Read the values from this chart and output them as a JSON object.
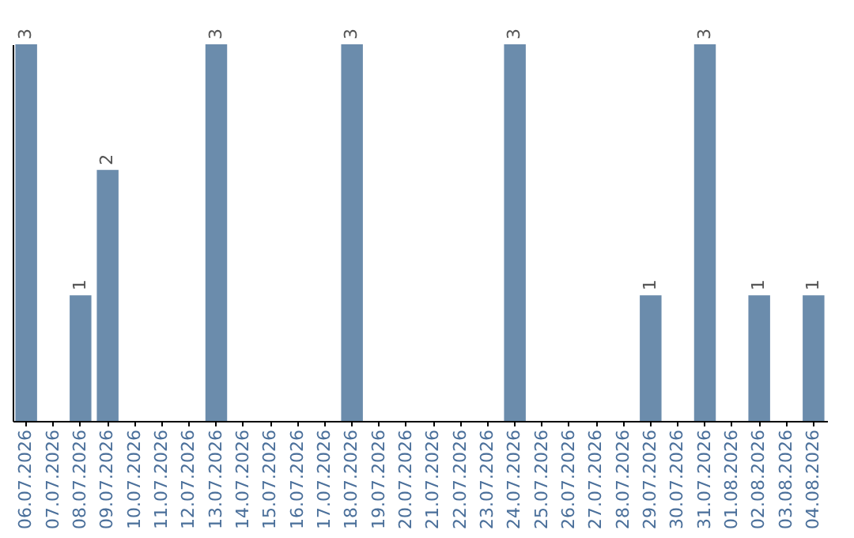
{
  "chart_data": {
    "type": "bar",
    "categories": [
      "06.07.2026",
      "07.07.2026",
      "08.07.2026",
      "09.07.2026",
      "10.07.2026",
      "11.07.2026",
      "12.07.2026",
      "13.07.2026",
      "14.07.2026",
      "15.07.2026",
      "16.07.2026",
      "17.07.2026",
      "18.07.2026",
      "19.07.2026",
      "20.07.2026",
      "21.07.2026",
      "22.07.2026",
      "23.07.2026",
      "24.07.2026",
      "25.07.2026",
      "26.07.2026",
      "27.07.2026",
      "28.07.2026",
      "29.07.2026",
      "30.07.2026",
      "31.07.2026",
      "01.08.2026",
      "02.08.2026",
      "03.08.2026",
      "04.08.2026"
    ],
    "values": [
      3,
      0,
      1,
      2,
      0,
      0,
      0,
      3,
      0,
      0,
      0,
      0,
      3,
      0,
      0,
      0,
      0,
      0,
      3,
      0,
      0,
      0,
      0,
      1,
      0,
      3,
      0,
      1,
      0,
      1
    ],
    "value_labels": [
      "3",
      null,
      "1",
      "2",
      null,
      null,
      null,
      "3",
      null,
      null,
      null,
      null,
      "3",
      null,
      null,
      null,
      null,
      null,
      "3",
      null,
      null,
      null,
      null,
      "1",
      null,
      "3",
      null,
      "1",
      null,
      "1"
    ],
    "color": "#6b8cac",
    "ylim": [
      0,
      3
    ],
    "grid": false,
    "tick_labels": "x"
  }
}
